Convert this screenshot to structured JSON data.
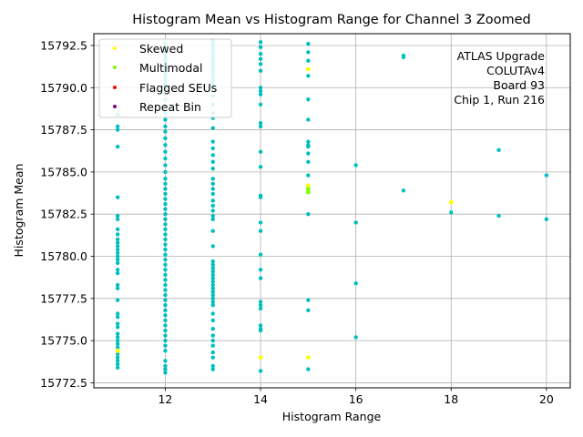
{
  "chart_data": {
    "type": "scatter",
    "title": "Histogram Mean vs Histogram Range for Channel 3 Zoomed",
    "xlabel": "Histogram Range",
    "ylabel": "Histogram Mean",
    "xlim": [
      10.5,
      20.5
    ],
    "ylim": [
      15772.2,
      15793.2
    ],
    "xticks": [
      12,
      14,
      16,
      18,
      20
    ],
    "yticks": [
      15772.5,
      15775.0,
      15777.5,
      15780.0,
      15782.5,
      15785.0,
      15787.5,
      15790.0,
      15792.5
    ],
    "ytick_labels": [
      "15772.5",
      "15775.0",
      "15777.5",
      "15780.0",
      "15782.5",
      "15785.0",
      "15787.5",
      "15790.0",
      "15792.5"
    ],
    "grid": true,
    "legend_position": "upper-left",
    "legend": [
      {
        "name": "Skewed",
        "color": "#ffff00"
      },
      {
        "name": "Multimodal",
        "color": "#7fff00"
      },
      {
        "name": "Flagged SEUs",
        "color": "#ff0000"
      },
      {
        "name": "Repeat Bin",
        "color": "#800080"
      }
    ],
    "annotation": [
      "ATLAS Upgrade",
      "COLUTAv4",
      "Board 93",
      "Chip 1, Run 216"
    ],
    "normal_color": "#00bfbf",
    "normal_series": [
      {
        "x": 11,
        "y": [
          15788.4,
          15787.7,
          15787.5,
          15786.5,
          15783.5,
          15782.4,
          15782.2,
          15781.6,
          15781.3,
          15781.0,
          15780.8,
          15780.6,
          15780.4,
          15780.2,
          15780.0,
          15779.8,
          15779.6,
          15779.2,
          15779.0,
          15778.3,
          15778.1,
          15777.4,
          15776.6,
          15776.4,
          15776.0,
          15775.8,
          15775.4,
          15775.2,
          15775.0,
          15774.8,
          15774.6,
          15774.2,
          15774.0,
          15773.8,
          15773.6,
          15773.4
        ]
      },
      {
        "x": 12,
        "y": [
          15792.6,
          15792.4,
          15792.2,
          15792.0,
          15791.8,
          15791.6,
          15791.4,
          15791.2,
          15791.0,
          15790.8,
          15790.6,
          15790.4,
          15790.2,
          15790.0,
          15789.7,
          15789.3,
          15788.9,
          15788.5,
          15788.1,
          15787.7,
          15787.4,
          15787.0,
          15786.6,
          15786.2,
          15785.8,
          15785.4,
          15785.0,
          15784.6,
          15784.3,
          15784.0,
          15783.7,
          15783.4,
          15783.1,
          15782.8,
          15782.5,
          15782.2,
          15781.9,
          15781.6,
          15781.3,
          15781.0,
          15780.7,
          15780.4,
          15780.1,
          15779.8,
          15779.5,
          15779.2,
          15778.9,
          15778.6,
          15778.3,
          15778.0,
          15777.7,
          15777.4,
          15777.1,
          15776.8,
          15776.5,
          15776.2,
          15775.9,
          15775.6,
          15775.3,
          15775.0,
          15774.7,
          15774.4,
          15773.8,
          15773.5,
          15773.3,
          15773.1
        ]
      },
      {
        "x": 13,
        "y": [
          15792.8,
          15792.6,
          15792.4,
          15792.2,
          15792.0,
          15791.8,
          15791.6,
          15791.4,
          15791.2,
          15791.0,
          15790.8,
          15790.6,
          15790.4,
          15790.2,
          15790.0,
          15789.5,
          15789.0,
          15788.5,
          15788.2,
          15787.6,
          15786.8,
          15786.4,
          15786.0,
          15785.6,
          15785.2,
          15784.6,
          15784.3,
          15784.0,
          15783.7,
          15783.3,
          15783.0,
          15782.7,
          15782.4,
          15782.2,
          15781.5,
          15780.6,
          15779.7,
          15779.5,
          15779.3,
          15779.1,
          15778.9,
          15778.7,
          15778.5,
          15778.3,
          15778.1,
          15777.9,
          15777.7,
          15777.5,
          15777.3,
          15777.1,
          15776.6,
          15776.2,
          15775.7,
          15775.3,
          15775.0,
          15774.7,
          15774.3,
          15774.0,
          15773.5,
          15773.3
        ]
      },
      {
        "x": 14,
        "y": [
          15792.7,
          15792.4,
          15792.0,
          15791.7,
          15791.4,
          15791.0,
          15790.0,
          15789.8,
          15789.6,
          15789.0,
          15787.9,
          15787.7,
          15786.2,
          15785.3,
          15783.6,
          15783.5,
          15782.0,
          15781.5,
          15780.1,
          15779.2,
          15778.7,
          15777.3,
          15777.1,
          15776.9,
          15775.9,
          15775.7,
          15775.6,
          15773.2
        ]
      },
      {
        "x": 15,
        "y": [
          15792.6,
          15792.1,
          15791.6,
          15790.7,
          15789.3,
          15788.1,
          15786.8,
          15786.6,
          15786.5,
          15786.1,
          15785.6,
          15784.8,
          15782.5,
          15777.4,
          15776.8,
          15773.3
        ]
      },
      {
        "x": 16,
        "y": [
          15785.4,
          15782.0,
          15778.4,
          15775.2
        ]
      },
      {
        "x": 17,
        "y": [
          15791.9,
          15791.8,
          15783.9
        ]
      },
      {
        "x": 18,
        "y": [
          15782.6
        ]
      },
      {
        "x": 19,
        "y": [
          15786.3,
          15782.4
        ]
      },
      {
        "x": 20,
        "y": [
          15784.8,
          15782.2
        ]
      }
    ],
    "flagged": [
      {
        "category": "Skewed",
        "x": 11,
        "y": 15774.4
      },
      {
        "category": "Skewed",
        "x": 14,
        "y": 15774.0
      },
      {
        "category": "Skewed",
        "x": 15,
        "y": 15791.1
      },
      {
        "category": "Skewed",
        "x": 15,
        "y": 15784.2
      },
      {
        "category": "Skewed",
        "x": 15,
        "y": 15774.0
      },
      {
        "category": "Skewed",
        "x": 18,
        "y": 15783.2
      },
      {
        "category": "Multimodal",
        "x": 15,
        "y": 15784.0
      },
      {
        "category": "Multimodal",
        "x": 15,
        "y": 15783.8
      }
    ]
  }
}
